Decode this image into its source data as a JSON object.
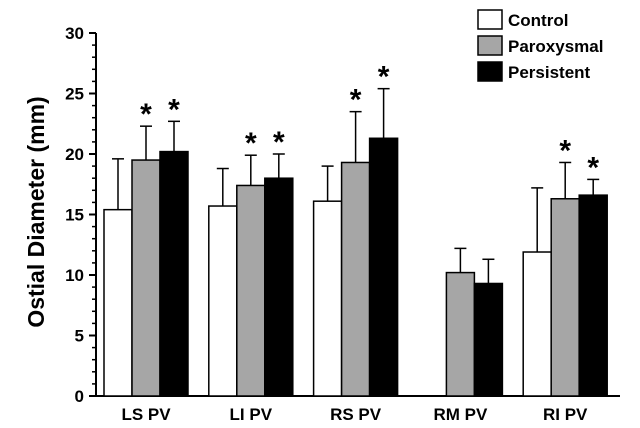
{
  "chart_data": {
    "type": "bar",
    "title": "",
    "xlabel": "",
    "ylabel": "Ostial Diameter (mm)",
    "ylim": [
      0,
      30
    ],
    "yticks": [
      0,
      5,
      10,
      15,
      20,
      25,
      30
    ],
    "categories": [
      "LS PV",
      "LI PV",
      "RS PV",
      "RM PV",
      "RI PV"
    ],
    "legend_position": "top-right",
    "significance_marker": "*",
    "series": [
      {
        "name": "Control",
        "color": "#ffffff",
        "values": [
          15.4,
          15.7,
          16.1,
          null,
          11.9
        ],
        "errors": [
          4.2,
          3.1,
          2.9,
          null,
          5.3
        ],
        "significant": [
          false,
          false,
          false,
          false,
          false
        ]
      },
      {
        "name": "Paroxysmal",
        "color": "#a6a6a6",
        "values": [
          19.5,
          17.4,
          19.3,
          10.2,
          16.3
        ],
        "errors": [
          2.8,
          2.5,
          4.2,
          2.0,
          3.0
        ],
        "significant": [
          true,
          true,
          true,
          false,
          true
        ]
      },
      {
        "name": "Persistent",
        "color": "#000000",
        "values": [
          20.2,
          18.0,
          21.3,
          9.3,
          16.6
        ],
        "errors": [
          2.5,
          2.0,
          4.1,
          2.0,
          1.3
        ],
        "significant": [
          true,
          true,
          true,
          false,
          true
        ]
      }
    ]
  }
}
